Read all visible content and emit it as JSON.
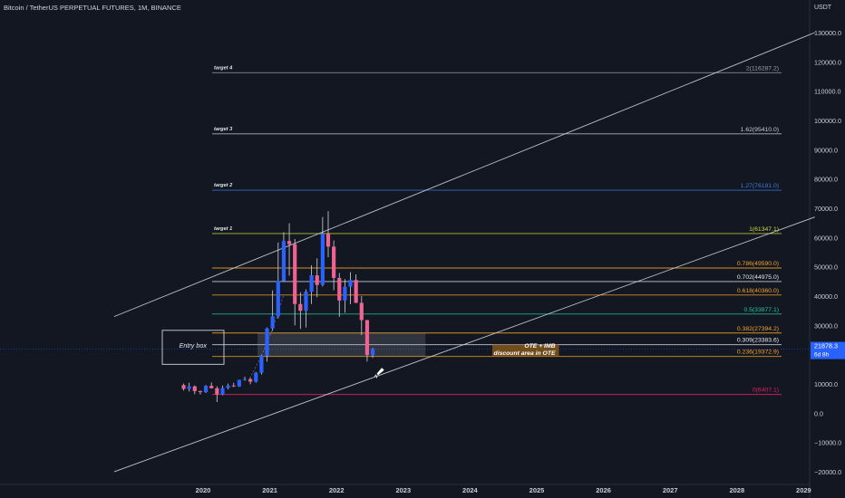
{
  "header": {
    "title": "Bitcoin / TetherUS PERPETUAL FUTURES, 1M, BINANCE",
    "currency": "USDT"
  },
  "colors": {
    "background": "#131722",
    "grid": "#1f2430",
    "axis_text": "#c9ccd4",
    "up_candle": "#2962ff",
    "down_candle": "#f06292",
    "neutral_candle": "#c9ccd4",
    "channel": "#d1d4dc",
    "ote_box": "#8a5a1a"
  },
  "chart_data": {
    "type": "candlestick",
    "title": "Bitcoin / TetherUS PERPETUAL FUTURES, 1M, BINANCE",
    "y_axis": {
      "ticks": [
        130000,
        120000,
        110000,
        100000,
        90000,
        80000,
        70000,
        60000,
        50000,
        40000,
        30000,
        20000,
        10000,
        0,
        -10000,
        -20000
      ],
      "tick_labels": [
        "130000.0",
        "120000.0",
        "110000.0",
        "100000.0",
        "90000.0",
        "80000.0",
        "70000.0",
        "60000.0",
        "50000.0",
        "40000.0",
        "30000.0",
        "20000.0",
        "10000.0",
        "0.0",
        "−10000.0",
        "−20000.0"
      ],
      "ylim": [
        -22000,
        143000
      ]
    },
    "x_axis": {
      "tick_labels": [
        "2020",
        "2021",
        "2022",
        "2023",
        "2024",
        "2025",
        "2026",
        "2027",
        "2028",
        "2029"
      ],
      "tick_years": [
        2020,
        2021,
        2022,
        2023,
        2024,
        2025,
        2026,
        2027,
        2028,
        2029
      ],
      "xlim": [
        "2018-09",
        "2029-03"
      ]
    },
    "candles": [
      {
        "date": "2019-09",
        "open": 9600,
        "high": 10100,
        "low": 7700,
        "close": 8300
      },
      {
        "date": "2019-10",
        "open": 8300,
        "high": 10400,
        "low": 7400,
        "close": 9150
      },
      {
        "date": "2019-11",
        "open": 9150,
        "high": 9500,
        "low": 6500,
        "close": 7550
      },
      {
        "date": "2019-12",
        "open": 7550,
        "high": 7700,
        "low": 6400,
        "close": 7200
      },
      {
        "date": "2020-01",
        "open": 7200,
        "high": 9600,
        "low": 6900,
        "close": 9350
      },
      {
        "date": "2020-02",
        "open": 9350,
        "high": 10500,
        "low": 8400,
        "close": 8530
      },
      {
        "date": "2020-03",
        "open": 8530,
        "high": 9200,
        "low": 3800,
        "close": 6410
      },
      {
        "date": "2020-04",
        "open": 6410,
        "high": 9450,
        "low": 6150,
        "close": 8620
      },
      {
        "date": "2020-05",
        "open": 8620,
        "high": 10100,
        "low": 8100,
        "close": 9450
      },
      {
        "date": "2020-06",
        "open": 9450,
        "high": 10400,
        "low": 8900,
        "close": 9140
      },
      {
        "date": "2020-07",
        "open": 9140,
        "high": 11450,
        "low": 8950,
        "close": 11350
      },
      {
        "date": "2020-08",
        "open": 11350,
        "high": 12480,
        "low": 11100,
        "close": 11650
      },
      {
        "date": "2020-09",
        "open": 11650,
        "high": 12050,
        "low": 9900,
        "close": 10780
      },
      {
        "date": "2020-10",
        "open": 10780,
        "high": 14100,
        "low": 10400,
        "close": 13800
      },
      {
        "date": "2020-11",
        "open": 13800,
        "high": 19900,
        "low": 13200,
        "close": 19700
      },
      {
        "date": "2020-12",
        "open": 19700,
        "high": 29300,
        "low": 17600,
        "close": 28950
      },
      {
        "date": "2021-01",
        "open": 28950,
        "high": 41950,
        "low": 28100,
        "close": 33100
      },
      {
        "date": "2021-02",
        "open": 33100,
        "high": 58300,
        "low": 32300,
        "close": 45200
      },
      {
        "date": "2021-03",
        "open": 45200,
        "high": 61800,
        "low": 45000,
        "close": 58800
      },
      {
        "date": "2021-04",
        "open": 58800,
        "high": 64900,
        "low": 47000,
        "close": 57700
      },
      {
        "date": "2021-05",
        "open": 57700,
        "high": 59500,
        "low": 30000,
        "close": 37300
      },
      {
        "date": "2021-06",
        "open": 37300,
        "high": 41300,
        "low": 28800,
        "close": 35000
      },
      {
        "date": "2021-07",
        "open": 35000,
        "high": 42300,
        "low": 29300,
        "close": 41500
      },
      {
        "date": "2021-08",
        "open": 41500,
        "high": 50500,
        "low": 37300,
        "close": 47100
      },
      {
        "date": "2021-09",
        "open": 47100,
        "high": 52900,
        "low": 39600,
        "close": 43800
      },
      {
        "date": "2021-10",
        "open": 43800,
        "high": 66999,
        "low": 43300,
        "close": 61300
      },
      {
        "date": "2021-11",
        "open": 61300,
        "high": 69000,
        "low": 53300,
        "close": 56900
      },
      {
        "date": "2021-12",
        "open": 56900,
        "high": 59000,
        "low": 42000,
        "close": 46200
      },
      {
        "date": "2022-01",
        "open": 46200,
        "high": 47900,
        "low": 32900,
        "close": 38500
      },
      {
        "date": "2022-02",
        "open": 38500,
        "high": 45800,
        "low": 34300,
        "close": 43200
      },
      {
        "date": "2022-03",
        "open": 43200,
        "high": 48200,
        "low": 37200,
        "close": 45500
      },
      {
        "date": "2022-04",
        "open": 45500,
        "high": 47400,
        "low": 37600,
        "close": 37700
      },
      {
        "date": "2022-05",
        "open": 37700,
        "high": 40000,
        "low": 26700,
        "close": 31800
      },
      {
        "date": "2022-06",
        "open": 31800,
        "high": 31900,
        "low": 17600,
        "close": 19900
      },
      {
        "date": "2022-07",
        "open": 19900,
        "high": 22300,
        "low": 18900,
        "close": 21878.3
      }
    ],
    "fib_levels": [
      {
        "ratio_label": "2(116287.2)",
        "price": 116287.2,
        "color": "#9aa0aa",
        "marker": "target 4"
      },
      {
        "ratio_label": "1.62(95410.0)",
        "price": 95410.0,
        "color": "#c9ccd4",
        "marker": "target 3"
      },
      {
        "ratio_label": "1.27(76181.0)",
        "price": 76181.0,
        "color": "#3d7bd9",
        "marker": "target 2"
      },
      {
        "ratio_label": "1(61347.1)",
        "price": 61347.1,
        "color": "#cddc39",
        "marker": "target 1"
      },
      {
        "ratio_label": "0.786(49590.0)",
        "price": 49590.0,
        "color": "#f5a623",
        "marker": ""
      },
      {
        "ratio_label": "0.702(44975.0)",
        "price": 44975.0,
        "color": "#e6e8ee",
        "marker": ""
      },
      {
        "ratio_label": "0.618(40360.0)",
        "price": 40360.0,
        "color": "#f5a623",
        "marker": ""
      },
      {
        "ratio_label": "0.5(33877.1)",
        "price": 33877.1,
        "color": "#26c6a0",
        "marker": ""
      },
      {
        "ratio_label": "0.382(27394.2)",
        "price": 27394.2,
        "color": "#f5a623",
        "marker": ""
      },
      {
        "ratio_label": "0.309(23383.6)",
        "price": 23383.6,
        "color": "#e6e8ee",
        "marker": ""
      },
      {
        "ratio_label": "0.236(19372.9)",
        "price": 19372.9,
        "color": "#f5a623",
        "marker": ""
      },
      {
        "ratio_label": "0(6407.1)",
        "price": 6407.1,
        "color": "#e91e63",
        "marker": ""
      }
    ],
    "channel": {
      "upper_line": [
        {
          "date": "2018-09",
          "price": 33000
        },
        {
          "date": "2029-03",
          "price": 130000
        }
      ],
      "lower_line": [
        {
          "date": "2018-09",
          "price": -20000
        },
        {
          "date": "2029-03",
          "price": 67000
        }
      ]
    },
    "annotations": {
      "entry_box": {
        "label": "Entry box",
        "from": "2022-07",
        "to": "2023-05",
        "price_low": 19372.9,
        "price_high": 27394.2
      },
      "ote_box": {
        "label_line1": "OTE + IMB",
        "label_line2": "discount area in OTE",
        "from": "2024-05",
        "to": "2025-05",
        "price_low": 19372.9,
        "price_high": 23383.6
      },
      "last_price": {
        "value": "21878.3",
        "countdown": "6d 8h",
        "price": 21878.3,
        "color": "#2962ff"
      }
    },
    "grid": false,
    "legend": "none"
  }
}
